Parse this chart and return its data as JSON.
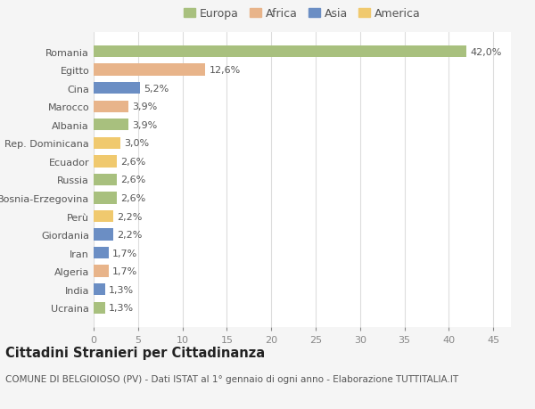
{
  "countries": [
    "Romania",
    "Egitto",
    "Cina",
    "Marocco",
    "Albania",
    "Rep. Dominicana",
    "Ecuador",
    "Russia",
    "Bosnia-Erzegovina",
    "Perù",
    "Giordania",
    "Iran",
    "Algeria",
    "India",
    "Ucraina"
  ],
  "values": [
    42.0,
    12.6,
    5.2,
    3.9,
    3.9,
    3.0,
    2.6,
    2.6,
    2.6,
    2.2,
    2.2,
    1.7,
    1.7,
    1.3,
    1.3
  ],
  "continents": [
    "Europa",
    "Africa",
    "Asia",
    "Africa",
    "Europa",
    "America",
    "America",
    "Europa",
    "Europa",
    "America",
    "Asia",
    "Asia",
    "Africa",
    "Asia",
    "Europa"
  ],
  "continent_colors": {
    "Europa": "#a8c07e",
    "Africa": "#e8b48a",
    "Asia": "#6b8ec4",
    "America": "#f0c96e"
  },
  "legend_order": [
    "Europa",
    "Africa",
    "Asia",
    "America"
  ],
  "title": "Cittadini Stranieri per Cittadinanza",
  "subtitle": "COMUNE DI BELGIOIOSO (PV) - Dati ISTAT al 1° gennaio di ogni anno - Elaborazione TUTTITALIA.IT",
  "xlim": [
    0,
    47
  ],
  "xticks": [
    0,
    5,
    10,
    15,
    20,
    25,
    30,
    35,
    40,
    45
  ],
  "background_color": "#f5f5f5",
  "bar_background": "#ffffff",
  "grid_color": "#dddddd",
  "label_fontsize": 8.0,
  "tick_fontsize": 8.0,
  "title_fontsize": 10.5,
  "subtitle_fontsize": 7.5
}
